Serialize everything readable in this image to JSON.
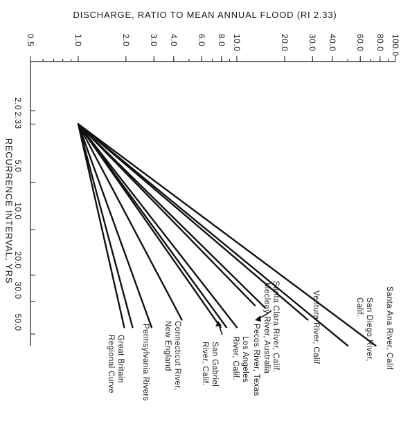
{
  "chart_data": {
    "type": "line",
    "orientation": "rotated-90",
    "title": "",
    "discharge_axis": {
      "label": "DISCHARGE, RATIO TO MEAN ANNUAL FLOOD (RI 2.33)",
      "scale": "log",
      "range": [
        0.5,
        100
      ],
      "ticks": [
        {
          "value": 0.5,
          "label": "0.5"
        },
        {
          "value": 1.0,
          "label": "1.0"
        },
        {
          "value": 2.0,
          "label": "2.0"
        },
        {
          "value": 3.0,
          "label": "3.0"
        },
        {
          "value": 4.0,
          "label": "4.0"
        },
        {
          "value": 6.0,
          "label": "6.0"
        },
        {
          "value": 8.0,
          "label": "8.0"
        },
        {
          "value": 10.0,
          "label": "10.0"
        },
        {
          "value": 20.0,
          "label": "20.0"
        },
        {
          "value": 30.0,
          "label": "30.0"
        },
        {
          "value": 40.0,
          "label": "40.0"
        },
        {
          "value": 60.0,
          "label": "60.0"
        },
        {
          "value": 80.0,
          "label": "80.0"
        },
        {
          "value": 100.0,
          "label": "100.0"
        }
      ]
    },
    "recurrence_axis": {
      "label": "RECURRENCE INTERVAL, YRS",
      "scale": "gumbel",
      "ticks": [
        {
          "value": 2.0,
          "label": "2.0"
        },
        {
          "value": 2.33,
          "label": "2.33"
        },
        {
          "value": 5.0,
          "label": "5.0"
        },
        {
          "value": 10.0,
          "label": "10.0"
        },
        {
          "value": 20.0,
          "label": "20.0"
        },
        {
          "value": 30.0,
          "label": "30.0"
        },
        {
          "value": 50.0,
          "label": "50.0"
        }
      ]
    },
    "series": [
      {
        "name": "Santa Ana River, Calif.",
        "points": [
          {
            "ri": 2.33,
            "q": 1.0
          },
          {
            "ri": 60,
            "q": 75
          }
        ]
      },
      {
        "name": "San Diego River, Calif.",
        "points": [
          {
            "ri": 2.33,
            "q": 1.0
          },
          {
            "ri": 60,
            "q": 50
          }
        ]
      },
      {
        "name": "Ventura River, Calif.",
        "points": [
          {
            "ri": 2.33,
            "q": 1.0
          },
          {
            "ri": 40,
            "q": 28
          }
        ]
      },
      {
        "name": "Santa Clara River, Calif.",
        "points": [
          {
            "ri": 2.33,
            "q": 1.0
          },
          {
            "ri": 33,
            "q": 15
          }
        ]
      },
      {
        "name": "Mecleay River, Australia",
        "points": [
          {
            "ri": 2.33,
            "q": 1.0
          },
          {
            "ri": 32,
            "q": 13
          }
        ]
      },
      {
        "name": "Pecos River, Texas",
        "points": [
          {
            "ri": 2.33,
            "q": 1.0
          },
          {
            "ri": 45,
            "q": 10
          }
        ]
      },
      {
        "name": "Los Angeles River, Calif.",
        "points": [
          {
            "ri": 2.33,
            "q": 1.0
          },
          {
            "ri": 45,
            "q": 8.6
          }
        ]
      },
      {
        "name": "San Gabriel River, Calif.",
        "points": [
          {
            "ri": 2.33,
            "q": 1.0
          },
          {
            "ri": 45,
            "q": 7.9
          }
        ]
      },
      {
        "name": "Connecticut River, New England",
        "points": [
          {
            "ri": 2.33,
            "q": 1.0
          },
          {
            "ri": 40,
            "q": 4.5
          }
        ]
      },
      {
        "name": "Pennsylvania Rivers",
        "points": [
          {
            "ri": 2.33,
            "q": 1.0
          },
          {
            "ri": 45,
            "q": 2.9
          }
        ]
      },
      {
        "name": "Great Britain",
        "points": [
          {
            "ri": 2.33,
            "q": 1.0
          },
          {
            "ri": 45,
            "q": 2.2
          }
        ]
      },
      {
        "name": "Regional Curve",
        "points": [
          {
            "ri": 2.33,
            "q": 1.0
          },
          {
            "ri": 45,
            "q": 1.95
          }
        ]
      }
    ],
    "labels": [
      {
        "lines": [
          "Santa Ana River, Calif"
        ]
      },
      {
        "lines": [
          "San Diego River,",
          "Calif."
        ]
      },
      {
        "lines": [
          "Ventura River, Calif"
        ]
      },
      {
        "lines": [
          "Santa Clara River, Calif."
        ]
      },
      {
        "lines": [
          "Mecleay River, Australia"
        ]
      },
      {
        "lines": [
          "Pecos River, Texas"
        ]
      },
      {
        "lines": [
          "Los Angeles",
          "River, Calif."
        ]
      },
      {
        "lines": [
          "San Gabriel",
          "River, Calif."
        ]
      },
      {
        "lines": [
          "Connecticut River,",
          "New England"
        ]
      },
      {
        "lines": [
          "Pennsylvania Rivers"
        ]
      },
      {
        "lines": [
          "Great Britain",
          "Regional Curve"
        ]
      }
    ]
  }
}
